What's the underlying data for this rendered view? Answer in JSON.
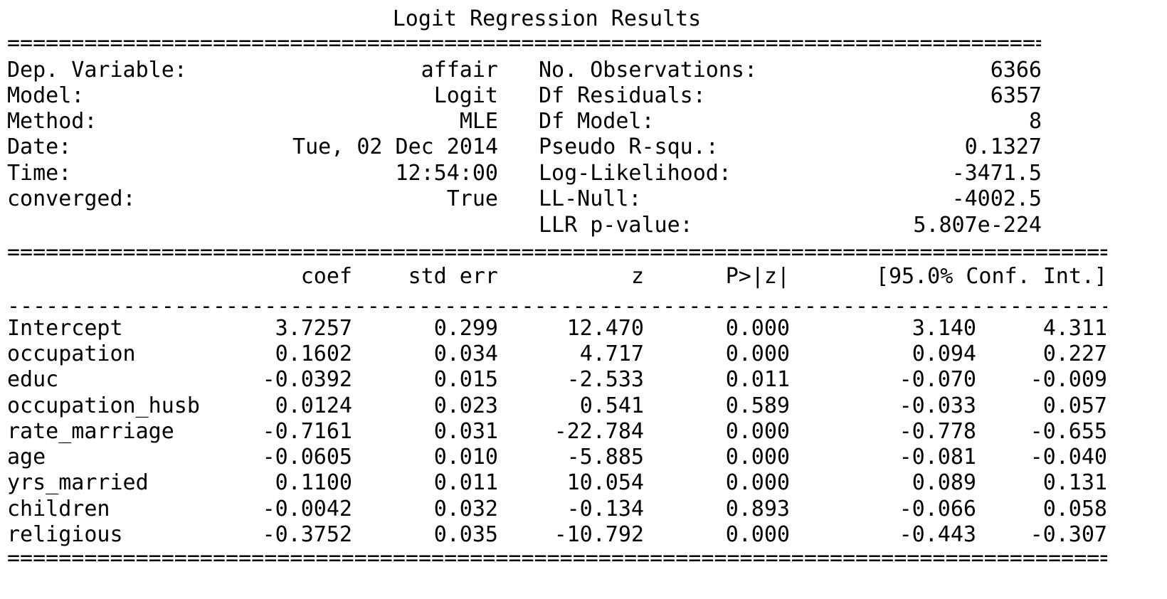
{
  "title": "Logit Regression Results",
  "separators": {
    "double_char": "=",
    "single_char": "-"
  },
  "info_left": [
    {
      "label": "Dep. Variable:",
      "value": "affair"
    },
    {
      "label": "Model:",
      "value": "Logit"
    },
    {
      "label": "Method:",
      "value": "MLE"
    },
    {
      "label": "Date:",
      "value": "Tue, 02 Dec 2014"
    },
    {
      "label": "Time:",
      "value": "12:54:00"
    },
    {
      "label": "converged:",
      "value": "True"
    }
  ],
  "info_right": [
    {
      "label": "No. Observations:",
      "value": "6366"
    },
    {
      "label": "Df Residuals:",
      "value": "6357"
    },
    {
      "label": "Df Model:",
      "value": "8"
    },
    {
      "label": "Pseudo R-squ.:",
      "value": "0.1327"
    },
    {
      "label": "Log-Likelihood:",
      "value": "-3471.5"
    },
    {
      "label": "LL-Null:",
      "value": "-4002.5"
    },
    {
      "label": "LLR p-value:",
      "value": "5.807e-224"
    }
  ],
  "coef_table": {
    "headers": {
      "coef": "coef",
      "std_err": "std err",
      "z": "z",
      "p": "P>|z|",
      "ci": "[95.0% Conf. Int.]"
    },
    "rows": [
      {
        "name": "Intercept",
        "coef": "3.7257",
        "std_err": "0.299",
        "z": "12.470",
        "p": "0.000",
        "ci_low": "3.140",
        "ci_high": "4.311"
      },
      {
        "name": "occupation",
        "coef": "0.1602",
        "std_err": "0.034",
        "z": "4.717",
        "p": "0.000",
        "ci_low": "0.094",
        "ci_high": "0.227"
      },
      {
        "name": "educ",
        "coef": "-0.0392",
        "std_err": "0.015",
        "z": "-2.533",
        "p": "0.011",
        "ci_low": "-0.070",
        "ci_high": "-0.009"
      },
      {
        "name": "occupation_husb",
        "coef": "0.0124",
        "std_err": "0.023",
        "z": "0.541",
        "p": "0.589",
        "ci_low": "-0.033",
        "ci_high": "0.057"
      },
      {
        "name": "rate_marriage",
        "coef": "-0.7161",
        "std_err": "0.031",
        "z": "-22.784",
        "p": "0.000",
        "ci_low": "-0.778",
        "ci_high": "-0.655"
      },
      {
        "name": "age",
        "coef": "-0.0605",
        "std_err": "0.010",
        "z": "-5.885",
        "p": "0.000",
        "ci_low": "-0.081",
        "ci_high": "-0.040"
      },
      {
        "name": "yrs_married",
        "coef": "0.1100",
        "std_err": "0.011",
        "z": "10.054",
        "p": "0.000",
        "ci_low": "0.089",
        "ci_high": "0.131"
      },
      {
        "name": "children",
        "coef": "-0.0042",
        "std_err": "0.032",
        "z": "-0.134",
        "p": "0.893",
        "ci_low": "-0.066",
        "ci_high": "0.058"
      },
      {
        "name": "religious",
        "coef": "-0.3752",
        "std_err": "0.035",
        "z": "-10.792",
        "p": "0.000",
        "ci_low": "-0.443",
        "ci_high": "-0.307"
      }
    ]
  }
}
